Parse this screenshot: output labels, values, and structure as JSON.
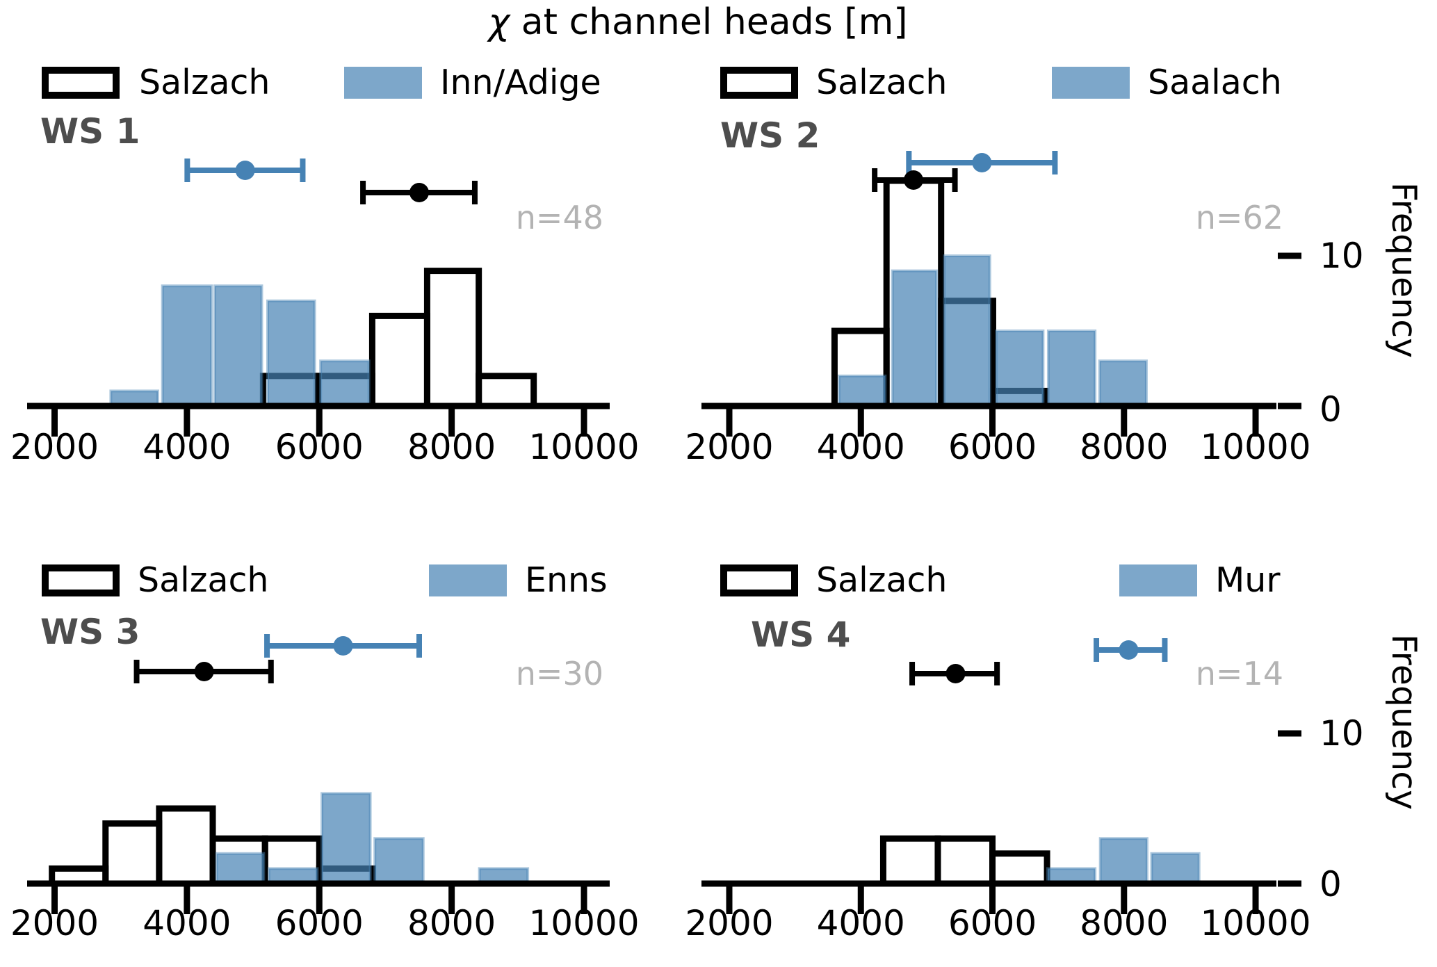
{
  "title": {
    "chi": "χ",
    "rest": " at channel heads [m]"
  },
  "chart_data": {
    "type": "bar",
    "subtype": "overlaid-histograms-2x2",
    "suptitle": "χ at channel heads [m]",
    "ylabel": "Frequency",
    "x_ticks": [
      2000,
      4000,
      6000,
      8000,
      10000
    ],
    "x_tick_labels": [
      "2000",
      "4000",
      "6000",
      "8000",
      "10000"
    ],
    "y_ticks": [
      0,
      10
    ],
    "y_tick_labels": [
      "0",
      "10"
    ],
    "xlim": [
      1600,
      10400
    ],
    "grid": false,
    "colors": {
      "salzach_outline": "#000000",
      "compare_base": "#4682B4",
      "compare_fill_alpha": 0.7,
      "overlap_band": "#315B7E",
      "ws_label": "#4D4D4D",
      "n_label": "#B3B3B3"
    },
    "panels": [
      {
        "id": "ws1",
        "label": "WS 1",
        "n_label": "n=48",
        "n": 48,
        "legend": [
          "Salzach",
          "Inn/Adige"
        ],
        "salzach": {
          "edges": [
            5150,
            5980,
            6800,
            7630,
            8410,
            9240
          ],
          "counts": [
            2,
            2,
            6,
            9,
            2
          ]
        },
        "compare": {
          "name": "Inn/Adige",
          "bars": [
            [
              2850,
              3560,
              1
            ],
            [
              3630,
              4370,
              8
            ],
            [
              4420,
              5130,
              8
            ],
            [
              5220,
              5930,
              7
            ],
            [
              6020,
              6750,
              3
            ]
          ]
        },
        "errorbars": {
          "compare": {
            "mean": 4880,
            "lo": 4005,
            "hi": 5750
          },
          "salzach": {
            "mean": 7510,
            "lo": 6660,
            "hi": 8350
          }
        }
      },
      {
        "id": "ws2",
        "label": "WS 2",
        "n_label": "n=62",
        "n": 62,
        "legend": [
          "Salzach",
          "Saalach"
        ],
        "salzach": {
          "edges": [
            3600,
            4390,
            5220,
            6010,
            6800
          ],
          "counts": [
            5,
            15,
            7,
            1
          ]
        },
        "compare": {
          "name": "Saalach",
          "bars": [
            [
              3670,
              4370,
              2
            ],
            [
              4480,
              5150,
              9
            ],
            [
              5270,
              5960,
              10
            ],
            [
              6060,
              6770,
              5
            ],
            [
              6850,
              7560,
              5
            ],
            [
              7630,
              8340,
              3
            ]
          ]
        },
        "errorbars": {
          "compare": {
            "mean": 5840,
            "lo": 4730,
            "hi": 6950
          },
          "salzach": {
            "mean": 4800,
            "lo": 4210,
            "hi": 5430
          }
        }
      },
      {
        "id": "ws3",
        "label": "WS 3",
        "n_label": "n=30",
        "n": 30,
        "legend": [
          "Salzach",
          "Enns"
        ],
        "salzach": {
          "edges": [
            1960,
            2770,
            3580,
            4390,
            5180,
            6000,
            6810
          ],
          "counts": [
            1,
            4,
            5,
            3,
            3,
            1
          ]
        },
        "compare": {
          "name": "Enns",
          "bars": [
            [
              4450,
              5160,
              2
            ],
            [
              5240,
              5970,
              1
            ],
            [
              6040,
              6770,
              6
            ],
            [
              6840,
              7570,
              3
            ],
            [
              8420,
              9150,
              1
            ]
          ]
        },
        "errorbars": {
          "compare": {
            "mean": 6360,
            "lo": 5210,
            "hi": 7510
          },
          "salzach": {
            "mean": 4260,
            "lo": 3240,
            "hi": 5270
          }
        }
      },
      {
        "id": "ws4",
        "label": "WS 4",
        "n_label": "n=14",
        "n": 14,
        "legend": [
          "Salzach",
          "Mur"
        ],
        "salzach": {
          "edges": [
            4340,
            5170,
            6000,
            6830
          ],
          "counts": [
            3,
            3,
            2
          ]
        },
        "compare": {
          "name": "Mur",
          "bars": [
            [
              6840,
              7560,
              1
            ],
            [
              7640,
              8350,
              3
            ],
            [
              8420,
              9140,
              2
            ]
          ]
        },
        "errorbars": {
          "compare": {
            "mean": 8070,
            "lo": 7580,
            "hi": 8620
          },
          "salzach": {
            "mean": 5440,
            "lo": 4780,
            "hi": 6070
          }
        }
      }
    ]
  }
}
